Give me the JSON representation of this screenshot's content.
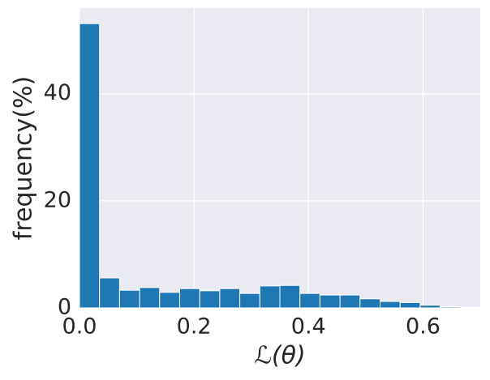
{
  "chart_data": {
    "type": "histogram",
    "xlabel": "ℒ(θ)",
    "ylabel": "frequency(%)",
    "bins": [
      0,
      0.035,
      0.07,
      0.105,
      0.14,
      0.175,
      0.21,
      0.245,
      0.28,
      0.315,
      0.35,
      0.385,
      0.42,
      0.455,
      0.49,
      0.525,
      0.56,
      0.595,
      0.63,
      0.665,
      0.7
    ],
    "values": [
      53.1,
      5.6,
      3.3,
      3.8,
      2.9,
      3.6,
      3.2,
      3.6,
      2.7,
      4.1,
      4.2,
      2.7,
      2.4,
      2.4,
      1.7,
      1.2,
      1.0,
      0.5,
      0.2,
      0.1
    ],
    "color": "#1f77b4",
    "xlim": [
      0,
      0.7
    ],
    "ylim": [
      0,
      56
    ],
    "xticks": [
      {
        "value": 0,
        "label": "0.0"
      },
      0.2,
      0.4,
      0.6
    ],
    "yticks": [
      0,
      20,
      40
    ],
    "grid": true
  }
}
